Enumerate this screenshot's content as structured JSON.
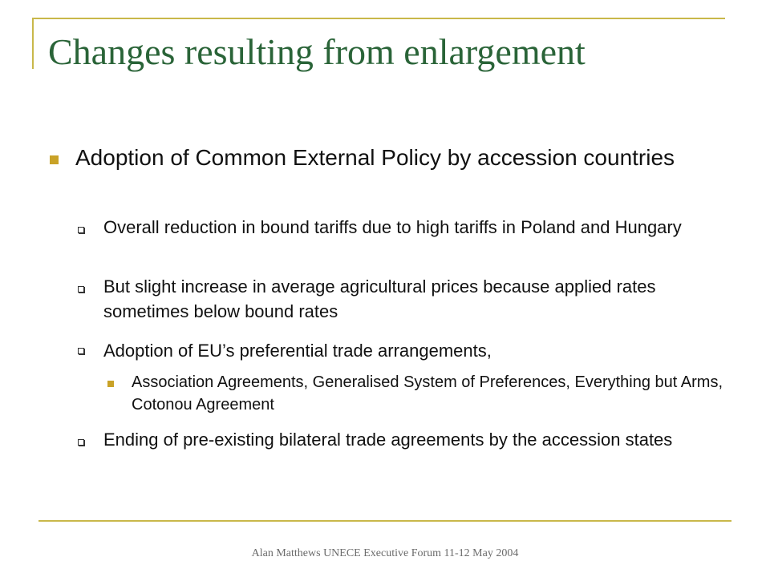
{
  "slide": {
    "title": "Changes resulting from enlargement",
    "bullets": {
      "main": "Adoption of Common External Policy by accession countries",
      "sub1": "Overall reduction in bound tariffs due to high tariffs in Poland and Hungary",
      "sub2": "But slight increase in average agricultural prices because applied rates sometimes below bound rates",
      "sub3": "Adoption of EU’s preferential trade arrangements,",
      "sub3_detail": "Association Agreements, Generalised System of Preferences, Everything but Arms, Cotonou Agreement",
      "sub4": "Ending of pre-existing bilateral trade agreements by the accession states"
    },
    "footer": "Alan Matthews UNECE Executive Forum 11-12 May 2004"
  },
  "colors": {
    "title": "#2a6438",
    "accent_line": "#c9b84a",
    "bullet": "#c9a227",
    "footer": "#6b6b6b"
  }
}
